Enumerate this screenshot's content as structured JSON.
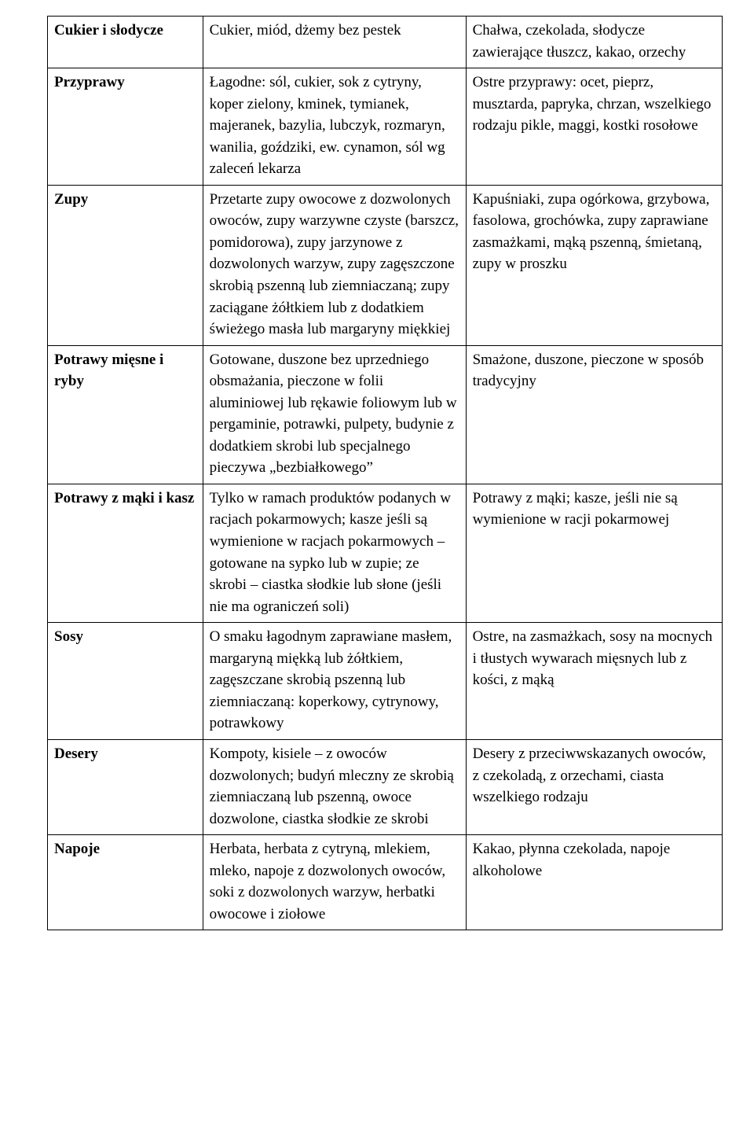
{
  "table": {
    "border_color": "#000000",
    "background_color": "#ffffff",
    "text_color": "#000000",
    "font_family": "Times New Roman",
    "font_size_pt": 14,
    "line_height": 1.45,
    "column_widths_pct": [
      23,
      39,
      38
    ],
    "column_alignments": [
      "left",
      "left",
      "left"
    ],
    "col1_font_weight": "bold",
    "rows": [
      {
        "category": "Cukier i słodycze",
        "allowed": "Cukier, miód, dżemy bez pestek",
        "not_allowed": "Chałwa, czekolada, słodycze zawierające tłuszcz, kakao, orzechy"
      },
      {
        "category": "Przyprawy",
        "allowed": "Łagodne: sól, cukier, sok z cytryny, koper zielony, kminek, tymianek, majeranek, bazylia, lubczyk, rozmaryn, wanilia, goździki, ew. cynamon, sól wg zaleceń lekarza",
        "not_allowed": "Ostre przyprawy: ocet, pieprz, musztarda, papryka, chrzan, wszelkiego rodzaju pikle, maggi, kostki rosołowe"
      },
      {
        "category": "Zupy",
        "allowed": "Przetarte zupy owocowe z dozwolonych owoców, zupy warzywne czyste (barszcz, pomidorowa), zupy jarzynowe z dozwolonych warzyw, zupy zagęszczone skrobią pszenną lub ziemniaczaną; zupy zaciągane żółtkiem lub z dodatkiem świeżego masła lub margaryny miękkiej",
        "not_allowed": "Kapuśniaki, zupa ogórkowa, grzybowa, fasolowa, grochówka, zupy zaprawiane zasmażkami, mąką pszenną, śmietaną, zupy w proszku"
      },
      {
        "category": "Potrawy mięsne i ryby",
        "allowed": "Gotowane, duszone bez uprzedniego obsmażania, pieczone w folii aluminiowej lub rękawie foliowym lub w pergaminie, potrawki, pulpety, budynie z dodatkiem skrobi lub specjalnego pieczywa „bezbiałkowego”",
        "not_allowed": "Smażone, duszone, pieczone w sposób tradycyjny"
      },
      {
        "category": "Potrawy z mąki i kasz",
        "allowed": "Tylko w ramach produktów podanych w racjach pokarmowych; kasze jeśli są wymienione w racjach pokarmowych – gotowane na sypko lub w zupie; ze skrobi – ciastka słodkie lub słone (jeśli nie ma ograniczeń soli)",
        "not_allowed": "Potrawy z mąki; kasze, jeśli nie są wymienione w racji pokarmowej"
      },
      {
        "category": "Sosy",
        "allowed": "O smaku łagodnym zaprawiane masłem, margaryną miękką lub żółtkiem, zagęszczane skrobią pszenną lub ziemniaczaną: koperkowy, cytrynowy, potrawkowy",
        "not_allowed": "Ostre, na zasmażkach, sosy na mocnych i tłustych wywarach mięsnych lub z kości, z mąką"
      },
      {
        "category": "Desery",
        "allowed": "Kompoty, kisiele – z owoców dozwolonych; budyń mleczny ze skrobią ziemniaczaną lub pszenną, owoce dozwolone, ciastka słodkie ze skrobi",
        "not_allowed": "Desery z przeciwwskazanych owoców, z czekoladą, z orzechami, ciasta wszelkiego rodzaju"
      },
      {
        "category": "Napoje",
        "allowed": "Herbata, herbata z cytryną, mlekiem, mleko, napoje z dozwolonych owoców, soki z dozwolonych warzyw, herbatki owocowe i ziołowe",
        "not_allowed": "Kakao, płynna czekolada, napoje alkoholowe"
      }
    ]
  }
}
